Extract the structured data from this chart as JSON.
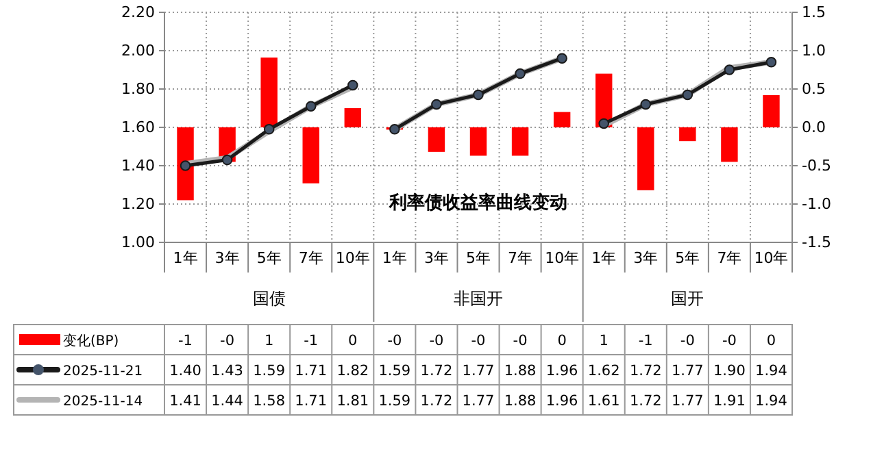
{
  "chart_data": {
    "type": "bar",
    "title": "利率债收益率曲线变动",
    "categories": [
      "1年",
      "3年",
      "5年",
      "7年",
      "10年",
      "1年",
      "3年",
      "5年",
      "7年",
      "10年",
      "1年",
      "3年",
      "5年",
      "7年",
      "10年"
    ],
    "annotations": [
      "国债",
      "非国开",
      "国开"
    ],
    "series": [
      {
        "name": "变化(BP)",
        "axis": "y2",
        "color": "#ff0000",
        "values": [
          -0.95,
          -0.45,
          0.91,
          -0.73,
          0.25,
          -0.03,
          -0.32,
          -0.37,
          -0.37,
          0.2,
          0.7,
          -0.82,
          -0.18,
          -0.45,
          0.42
        ],
        "value_labels": [
          "-1",
          "-0",
          "1",
          "-1",
          "0",
          "-0",
          "-0",
          "-0",
          "-0",
          "0",
          "1",
          "-1",
          "-0",
          "-0",
          "0"
        ]
      },
      {
        "name": "2025-11-21",
        "type": "line",
        "color": "#1a1a1a",
        "marker": "circle",
        "values": [
          1.4,
          1.43,
          1.59,
          1.71,
          1.82,
          1.59,
          1.72,
          1.77,
          1.88,
          1.96,
          1.62,
          1.72,
          1.77,
          1.9,
          1.94
        ],
        "value_labels": [
          "1.40",
          "1.43",
          "1.59",
          "1.71",
          "1.82",
          "1.59",
          "1.72",
          "1.77",
          "1.88",
          "1.96",
          "1.62",
          "1.72",
          "1.77",
          "1.90",
          "1.94"
        ]
      },
      {
        "name": "2025-11-14",
        "type": "line",
        "color": "#b4b4b4",
        "values": [
          1.41,
          1.44,
          1.58,
          1.71,
          1.81,
          1.59,
          1.72,
          1.77,
          1.88,
          1.96,
          1.61,
          1.72,
          1.77,
          1.91,
          1.94
        ],
        "value_labels": [
          "1.41",
          "1.44",
          "1.58",
          "1.71",
          "1.81",
          "1.59",
          "1.72",
          "1.77",
          "1.88",
          "1.96",
          "1.61",
          "1.72",
          "1.77",
          "1.91",
          "1.94"
        ]
      }
    ],
    "ylim": [
      1.0,
      2.2
    ],
    "yticks": [
      {
        "value": 1.0,
        "label": "1.00"
      },
      {
        "value": 1.2,
        "label": "1.20"
      },
      {
        "value": 1.4,
        "label": "1.40"
      },
      {
        "value": 1.6,
        "label": "1.60"
      },
      {
        "value": 1.8,
        "label": "1.80"
      },
      {
        "value": 2.0,
        "label": "2.00"
      },
      {
        "value": 2.2,
        "label": "2.20"
      }
    ],
    "y2lim": [
      -1.5,
      1.5
    ],
    "y2ticks": [
      -1.5,
      {
        "value": -1.0,
        "label": "-1.0"
      },
      -0.5,
      {
        "value": 0,
        "label": "0.0"
      },
      0.5,
      {
        "value": 1.0,
        "label": "1.0"
      },
      1.5
    ],
    "grid": true,
    "legend": "bottom"
  }
}
